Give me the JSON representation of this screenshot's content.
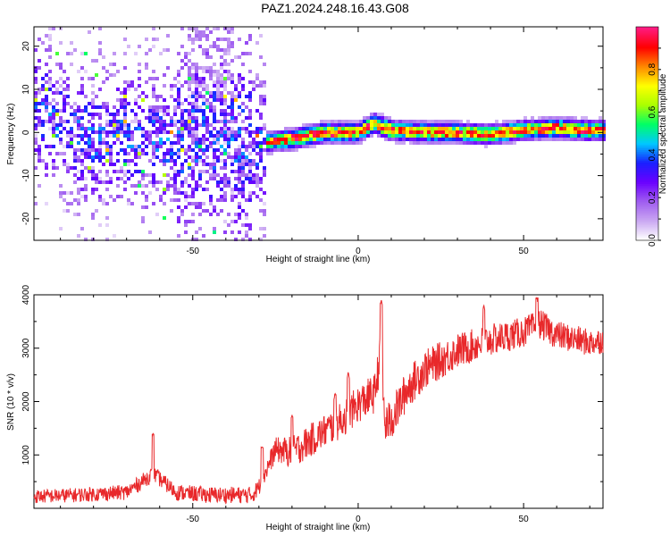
{
  "title": "PAZ1.2024.248.16.43.G08",
  "chart_data": [
    {
      "type": "heatmap",
      "xlabel": "Height of straight line (km)",
      "ylabel": "Frequency (Hz)",
      "xlim": [
        -98,
        74
      ],
      "ylim": [
        -25,
        24.5
      ],
      "xticks": [
        -50,
        0,
        50
      ],
      "yticks": [
        -20,
        -10,
        0,
        10,
        20
      ],
      "colorbar": {
        "label": "Normalized spectral amplitude",
        "range": [
          0,
          1
        ],
        "ticks": [
          0.0,
          0.2,
          0.4,
          0.6,
          0.8
        ],
        "colors": [
          "#ffffff",
          "#c9a6f2",
          "#9f5cf0",
          "#6a00ff",
          "#1a20ff",
          "#00c8ff",
          "#00ff66",
          "#aaff00",
          "#ffff00",
          "#ff8800",
          "#ff0000",
          "#ff1a80"
        ]
      },
      "ridge": {
        "x": [
          -98,
          -90,
          -80,
          -70,
          -60,
          -50,
          -40,
          -35,
          -30,
          -25,
          -20,
          -10,
          0,
          5,
          10,
          20,
          30,
          40,
          50,
          60,
          70,
          74
        ],
        "frequency": [
          6,
          2,
          -2,
          -1,
          -2,
          -1,
          -1,
          -2,
          -2.5,
          -2,
          -1.5,
          0,
          0,
          2,
          0.5,
          0,
          0,
          -0.5,
          0.5,
          1,
          0.5,
          0.5
        ]
      }
    },
    {
      "type": "line",
      "xlabel": "Height of straight line (km)",
      "ylabel": "SNR (10 * v/v)",
      "xlim": [
        -98,
        74
      ],
      "ylim": [
        0,
        4000
      ],
      "xticks": [
        -50,
        0,
        50
      ],
      "yticks": [
        1000,
        2000,
        3000,
        4000
      ],
      "series_color": "#e8282a",
      "trend": {
        "x": [
          -98,
          -85,
          -70,
          -62,
          -55,
          -45,
          -32,
          -30,
          -25,
          -20,
          -15,
          -10,
          -5,
          0,
          5,
          7,
          8,
          10,
          15,
          20,
          30,
          40,
          50,
          55,
          60,
          70,
          74
        ],
        "y": [
          220,
          250,
          300,
          650,
          300,
          250,
          250,
          400,
          1100,
          1050,
          1250,
          1450,
          1650,
          1950,
          2150,
          3000,
          1550,
          1650,
          2250,
          2600,
          2950,
          3150,
          3300,
          3450,
          3250,
          3100,
          3150
        ]
      },
      "noise_amplitude": [
        [
          -98,
          130
        ],
        [
          -30,
          160
        ],
        [
          -20,
          300
        ],
        [
          0,
          350
        ],
        [
          10,
          400
        ],
        [
          40,
          300
        ],
        [
          74,
          250
        ]
      ],
      "spikes": [
        {
          "x": -62,
          "y": 1400
        },
        {
          "x": -29,
          "y": 1150
        },
        {
          "x": -20,
          "y": 1750
        },
        {
          "x": -7,
          "y": 2150
        },
        {
          "x": -3,
          "y": 2550
        },
        {
          "x": 7,
          "y": 3900
        },
        {
          "x": 38,
          "y": 3800
        },
        {
          "x": 54,
          "y": 3950
        }
      ]
    }
  ]
}
